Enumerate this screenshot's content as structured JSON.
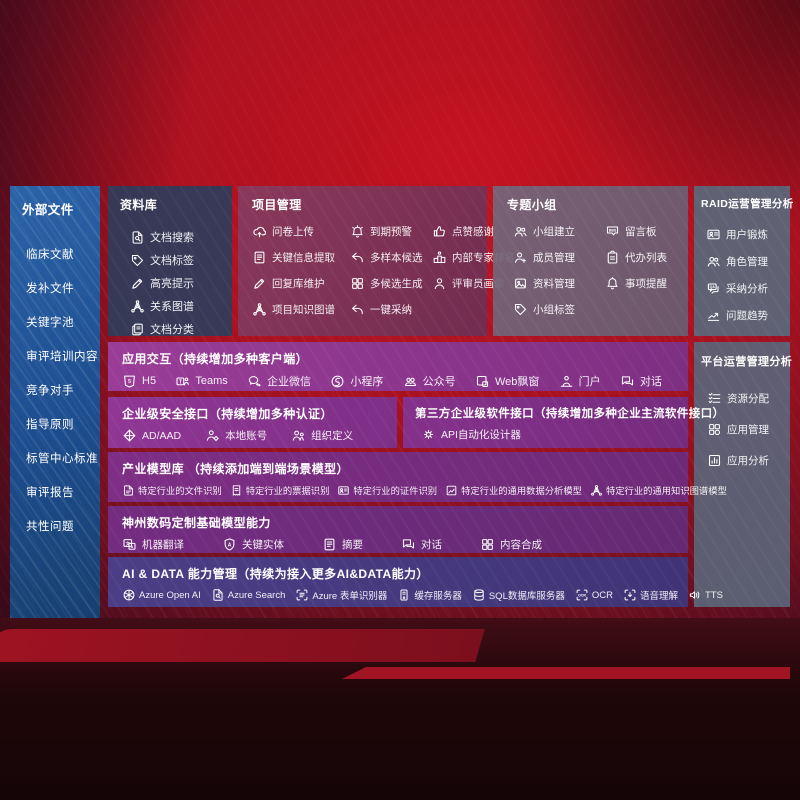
{
  "colors": {
    "background_red": "#b01220",
    "sidebar_blue": "#1d4d8f",
    "band_purple": "#8e3a8c",
    "band_indigo": "#4c3e86",
    "panel_gray": "#5d6678",
    "text": "#ffffff"
  },
  "sidebar": {
    "title": "外部文件",
    "items": [
      "临床文献",
      "发补文件",
      "关键字池",
      "审评培训内容",
      "竞争对手",
      "指导原则",
      "标管中心标准",
      "审评报告",
      "共性问题"
    ]
  },
  "repository": {
    "title": "资料库",
    "items": [
      {
        "icon": "doc-search-icon",
        "label": "文档搜索"
      },
      {
        "icon": "tag-icon",
        "label": "文档标签"
      },
      {
        "icon": "pen-icon",
        "label": "高亮提示"
      },
      {
        "icon": "knowledge-graph-icon",
        "label": "关系图谱"
      },
      {
        "icon": "doc-copy-icon",
        "label": "文档分类"
      }
    ]
  },
  "project": {
    "title": "项目管理",
    "items": [
      {
        "icon": "cloud-upload-icon",
        "label": "问卷上传"
      },
      {
        "icon": "alarm-icon",
        "label": "到期预警"
      },
      {
        "icon": "thumbs-up-icon",
        "label": "点赞感谢"
      },
      {
        "icon": "doc-extract-icon",
        "label": "关键信息提取"
      },
      {
        "icon": "reply-arrow-icon",
        "label": "多样本候选"
      },
      {
        "icon": "ranking-icon",
        "label": "内部专家排名"
      },
      {
        "icon": "pen-icon",
        "label": "回复库维护"
      },
      {
        "icon": "grid-generate-icon",
        "label": "多候选生成"
      },
      {
        "icon": "person-icon",
        "label": "评审员画像"
      },
      {
        "icon": "knowledge-graph-icon",
        "label": "项目知识图谱"
      },
      {
        "icon": "adopt-arrow-icon",
        "label": "一键采纳"
      }
    ]
  },
  "groups": {
    "title": "专题小组",
    "items": [
      {
        "icon": "people-icon",
        "label": "小组建立"
      },
      {
        "icon": "bbs-chat-icon",
        "label": "留言板"
      },
      {
        "icon": "person-add-icon",
        "label": "成员管理"
      },
      {
        "icon": "clipboard-icon",
        "label": "代办列表"
      },
      {
        "icon": "image-folder-icon",
        "label": "资料管理"
      },
      {
        "icon": "bell-icon",
        "label": "事项提醒"
      },
      {
        "icon": "tag-icon",
        "label": "小组标签"
      }
    ]
  },
  "raid": {
    "title": "RAID运营管理分析",
    "items": [
      {
        "icon": "id-card-icon",
        "label": "用户锻炼"
      },
      {
        "icon": "people-icon",
        "label": "角色管理"
      },
      {
        "icon": "qa-chat-icon",
        "label": "采纳分析"
      },
      {
        "icon": "trend-chart-icon",
        "label": "问题趋势"
      }
    ]
  },
  "platform": {
    "title": "平台运营管理分析",
    "items": [
      {
        "icon": "resource-allocation-icon",
        "label": "资源分配"
      },
      {
        "icon": "app-management-icon",
        "label": "应用管理"
      },
      {
        "icon": "app-analysis-icon",
        "label": "应用分析"
      }
    ]
  },
  "bands": {
    "interaction": {
      "title": "应用交互（持续增加多种客户端）",
      "items": [
        {
          "icon": "h5-icon",
          "label": "H5"
        },
        {
          "icon": "teams-icon",
          "label": "Teams"
        },
        {
          "icon": "wechat-work-icon",
          "label": "企业微信"
        },
        {
          "icon": "miniprogram-icon",
          "label": "小程序"
        },
        {
          "icon": "official-account-icon",
          "label": "公众号"
        },
        {
          "icon": "browser-window-icon",
          "label": "Web飘窗"
        },
        {
          "icon": "portal-person-icon",
          "label": "门户"
        },
        {
          "icon": "dialog-icon",
          "label": "对话"
        }
      ]
    },
    "security": {
      "title": "企业级安全接口（持续增加多种认证）",
      "items": [
        {
          "icon": "azure-ad-icon",
          "label": "AD/AAD"
        },
        {
          "icon": "local-account-icon",
          "label": "本地账号"
        },
        {
          "icon": "org-define-icon",
          "label": "组织定义"
        }
      ]
    },
    "thirdparty": {
      "title": "第三方企业级软件接口（持续增加多种企业主流软件接口）",
      "items": [
        {
          "icon": "api-gear-icon",
          "label": "API自动化设计器"
        }
      ]
    },
    "industry": {
      "title": "产业模型库 （持续添加端到端场景模型）",
      "items": [
        {
          "icon": "file-recognition-icon",
          "label": "特定行业的文件识别"
        },
        {
          "icon": "receipt-recognition-icon",
          "label": "特定行业的票据识别"
        },
        {
          "icon": "id-card-icon",
          "label": "特定行业的证件识别"
        },
        {
          "icon": "data-analysis-model-icon",
          "label": "特定行业的通用数据分析模型"
        },
        {
          "icon": "knowledge-graph-icon",
          "label": "特定行业的通用知识图谱模型"
        }
      ]
    },
    "base": {
      "title": "神州数码定制基础模型能力",
      "items": [
        {
          "icon": "translate-icon",
          "label": "机器翻译"
        },
        {
          "icon": "entity-shield-icon",
          "label": "关键实体"
        },
        {
          "icon": "summary-doc-icon",
          "label": "摘要"
        },
        {
          "icon": "dialog-icon",
          "label": "对话"
        },
        {
          "icon": "content-compose-icon",
          "label": "内容合成"
        }
      ]
    },
    "aidata": {
      "title": "AI & DATA 能力管理（持续为接入更多AI&DATA能力）",
      "items": [
        {
          "icon": "openai-icon",
          "label": "Azure Open AI"
        },
        {
          "icon": "azure-search-icon",
          "label": "Azure Search"
        },
        {
          "icon": "form-recognizer-icon",
          "label": "Azure 表单识别器"
        },
        {
          "icon": "cache-server-icon",
          "label": "缓存服务器"
        },
        {
          "icon": "sql-database-icon",
          "label": "SQL数据库服务器"
        },
        {
          "icon": "ocr-icon",
          "label": "OCR"
        },
        {
          "icon": "speech-understanding-icon",
          "label": "语音理解"
        },
        {
          "icon": "tts-speaker-icon",
          "label": "TTS"
        }
      ]
    }
  }
}
